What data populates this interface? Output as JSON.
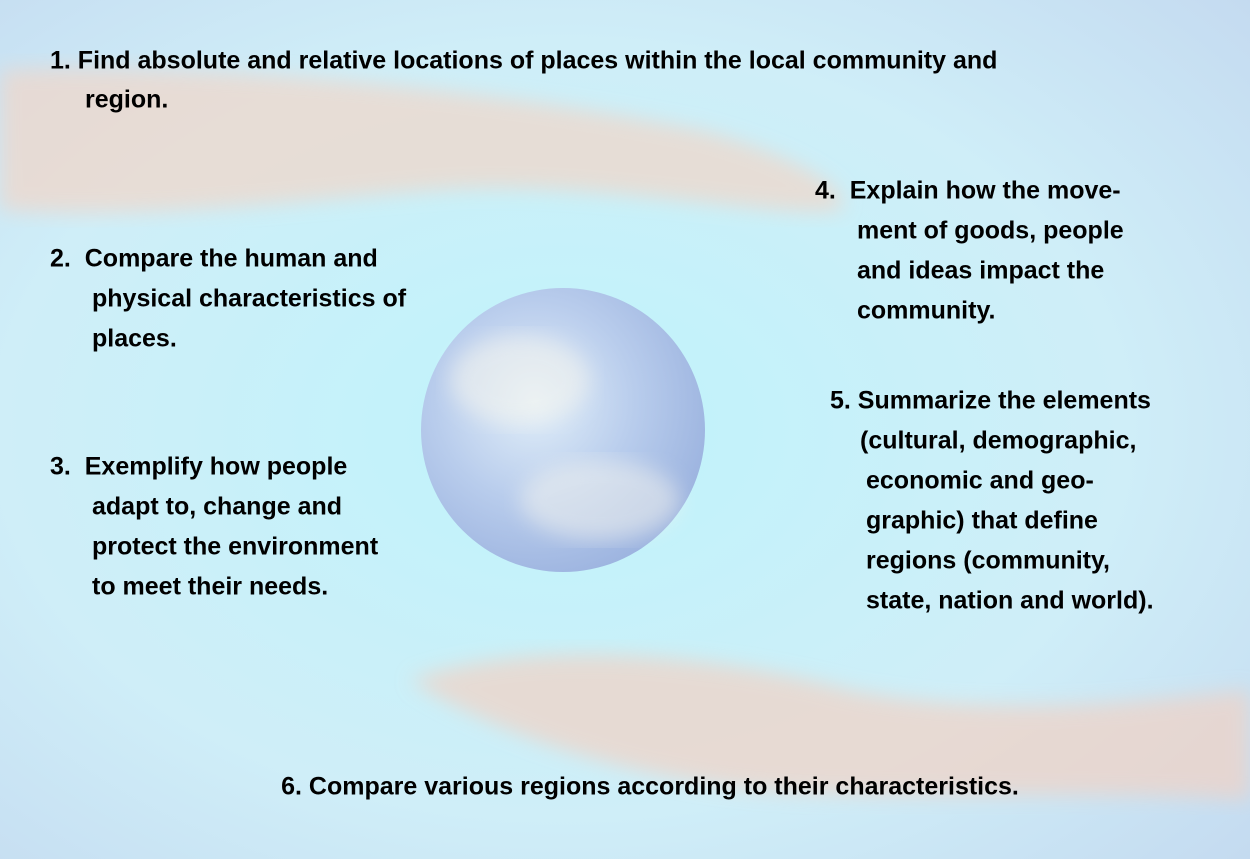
{
  "items": [
    {
      "lines": [
        "1. Find absolute and relative locations of places within the local community and",
        "region."
      ]
    },
    {
      "lines": [
        "2.  Compare the human and",
        "physical characteristics of",
        "places."
      ]
    },
    {
      "lines": [
        "3.  Exemplify how people",
        "adapt to, change and",
        "protect the environment",
        "to meet their needs."
      ]
    },
    {
      "lines": [
        "4.  Explain how the move-",
        "ment of goods, people",
        "and ideas impact the",
        "community."
      ]
    },
    {
      "lines": [
        "5. Summarize the elements",
        "(cultural, demographic,",
        "economic and geo-",
        "graphic) that define",
        "regions (community,",
        "state, nation and world)."
      ]
    },
    {
      "lines": [
        "6. Compare various regions according to their characteristics."
      ]
    }
  ]
}
